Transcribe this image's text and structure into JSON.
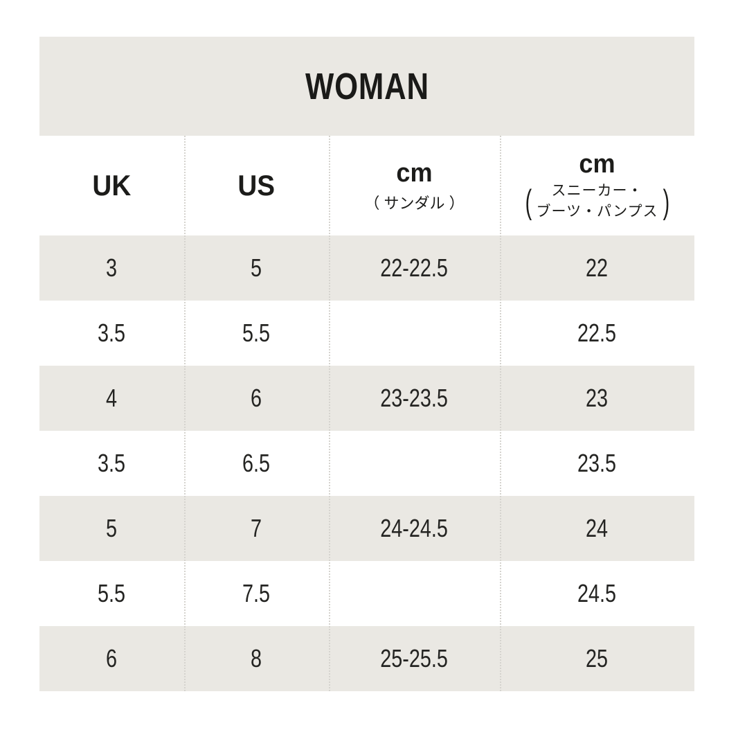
{
  "colors": {
    "page_background": "#ffffff",
    "band": "#eae8e3",
    "text": "#1c1c1a",
    "separator_dotted": "#d5d3ce"
  },
  "chart_data": {
    "type": "table",
    "title": "WOMAN",
    "columns": [
      {
        "label": "UK"
      },
      {
        "label": "US"
      },
      {
        "label": "cm",
        "sub": "（ サンダル ）"
      },
      {
        "label": "cm",
        "paren_open": "(",
        "paren_close": ")",
        "sub_line1": "スニーカー・",
        "sub_line2": "ブーツ・パンプス"
      }
    ],
    "rows": [
      [
        "3",
        "5",
        "22-22.5",
        "22"
      ],
      [
        "3.5",
        "5.5",
        "",
        "22.5"
      ],
      [
        "4",
        "6",
        "23-23.5",
        "23"
      ],
      [
        "3.5",
        "6.5",
        "",
        "23.5"
      ],
      [
        "5",
        "7",
        "24-24.5",
        "24"
      ],
      [
        "5.5",
        "7.5",
        "",
        "24.5"
      ],
      [
        "6",
        "8",
        "25-25.5",
        "25"
      ]
    ],
    "layout": {
      "shaded_row_indices": [
        0,
        2,
        4,
        6
      ],
      "column_separators": "dotted"
    }
  }
}
